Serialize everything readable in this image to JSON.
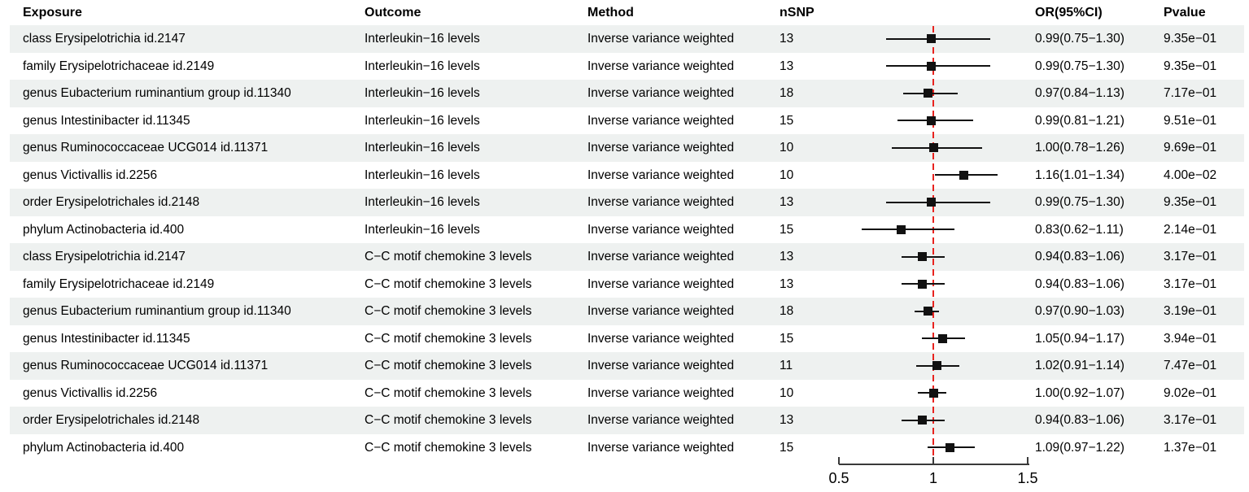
{
  "table": {
    "headers": {
      "exposure": "Exposure",
      "outcome": "Outcome",
      "method": "Method",
      "nsnp": "nSNP",
      "or_ci": "OR(95%CI)",
      "pvalue": "Pvalue"
    }
  },
  "chart_data": {
    "type": "scatter",
    "variant": "forest-plot",
    "xlim": [
      0.5,
      1.5
    ],
    "x_ticks": [
      {
        "value": 0.5,
        "label": "0.5"
      },
      {
        "value": 1,
        "label": "1"
      },
      {
        "value": 1.5,
        "label": "1.5"
      }
    ],
    "reference_line": {
      "x": 1,
      "style": "dashed",
      "color": "#e8231f"
    },
    "rows": [
      {
        "exposure": "class Erysipelotrichia id.2147",
        "outcome": "Interleukin−16 levels",
        "method": "Inverse variance weighted",
        "nsnp": "13",
        "or": 0.99,
        "ci_low": 0.75,
        "ci_high": 1.3,
        "or_ci": "0.99(0.75−1.30)",
        "pvalue": "9.35e−01"
      },
      {
        "exposure": "family Erysipelotrichaceae id.2149",
        "outcome": "Interleukin−16 levels",
        "method": "Inverse variance weighted",
        "nsnp": "13",
        "or": 0.99,
        "ci_low": 0.75,
        "ci_high": 1.3,
        "or_ci": "0.99(0.75−1.30)",
        "pvalue": "9.35e−01"
      },
      {
        "exposure": "genus Eubacterium ruminantium group id.11340",
        "outcome": "Interleukin−16 levels",
        "method": "Inverse variance weighted",
        "nsnp": "18",
        "or": 0.97,
        "ci_low": 0.84,
        "ci_high": 1.13,
        "or_ci": "0.97(0.84−1.13)",
        "pvalue": "7.17e−01"
      },
      {
        "exposure": "genus Intestinibacter id.11345",
        "outcome": "Interleukin−16 levels",
        "method": "Inverse variance weighted",
        "nsnp": "15",
        "or": 0.99,
        "ci_low": 0.81,
        "ci_high": 1.21,
        "or_ci": "0.99(0.81−1.21)",
        "pvalue": "9.51e−01"
      },
      {
        "exposure": "genus Ruminococcaceae UCG014 id.11371",
        "outcome": "Interleukin−16 levels",
        "method": "Inverse variance weighted",
        "nsnp": "10",
        "or": 1.0,
        "ci_low": 0.78,
        "ci_high": 1.26,
        "or_ci": "1.00(0.78−1.26)",
        "pvalue": "9.69e−01"
      },
      {
        "exposure": "genus Victivallis id.2256",
        "outcome": "Interleukin−16 levels",
        "method": "Inverse variance weighted",
        "nsnp": "10",
        "or": 1.16,
        "ci_low": 1.01,
        "ci_high": 1.34,
        "or_ci": "1.16(1.01−1.34)",
        "pvalue": "4.00e−02"
      },
      {
        "exposure": "order Erysipelotrichales id.2148",
        "outcome": "Interleukin−16 levels",
        "method": "Inverse variance weighted",
        "nsnp": "13",
        "or": 0.99,
        "ci_low": 0.75,
        "ci_high": 1.3,
        "or_ci": "0.99(0.75−1.30)",
        "pvalue": "9.35e−01"
      },
      {
        "exposure": "phylum Actinobacteria id.400",
        "outcome": "Interleukin−16 levels",
        "method": "Inverse variance weighted",
        "nsnp": "15",
        "or": 0.83,
        "ci_low": 0.62,
        "ci_high": 1.11,
        "or_ci": "0.83(0.62−1.11)",
        "pvalue": "2.14e−01"
      },
      {
        "exposure": "class Erysipelotrichia id.2147",
        "outcome": "C−C motif chemokine 3 levels",
        "method": "Inverse variance weighted",
        "nsnp": "13",
        "or": 0.94,
        "ci_low": 0.83,
        "ci_high": 1.06,
        "or_ci": "0.94(0.83−1.06)",
        "pvalue": "3.17e−01"
      },
      {
        "exposure": "family Erysipelotrichaceae id.2149",
        "outcome": "C−C motif chemokine 3 levels",
        "method": "Inverse variance weighted",
        "nsnp": "13",
        "or": 0.94,
        "ci_low": 0.83,
        "ci_high": 1.06,
        "or_ci": "0.94(0.83−1.06)",
        "pvalue": "3.17e−01"
      },
      {
        "exposure": "genus Eubacterium ruminantium group id.11340",
        "outcome": "C−C motif chemokine 3 levels",
        "method": "Inverse variance weighted",
        "nsnp": "18",
        "or": 0.97,
        "ci_low": 0.9,
        "ci_high": 1.03,
        "or_ci": "0.97(0.90−1.03)",
        "pvalue": "3.19e−01"
      },
      {
        "exposure": "genus Intestinibacter id.11345",
        "outcome": "C−C motif chemokine 3 levels",
        "method": "Inverse variance weighted",
        "nsnp": "15",
        "or": 1.05,
        "ci_low": 0.94,
        "ci_high": 1.17,
        "or_ci": "1.05(0.94−1.17)",
        "pvalue": "3.94e−01"
      },
      {
        "exposure": "genus Ruminococcaceae UCG014 id.11371",
        "outcome": "C−C motif chemokine 3 levels",
        "method": "Inverse variance weighted",
        "nsnp": "11",
        "or": 1.02,
        "ci_low": 0.91,
        "ci_high": 1.14,
        "or_ci": "1.02(0.91−1.14)",
        "pvalue": "7.47e−01"
      },
      {
        "exposure": "genus Victivallis id.2256",
        "outcome": "C−C motif chemokine 3 levels",
        "method": "Inverse variance weighted",
        "nsnp": "10",
        "or": 1.0,
        "ci_low": 0.92,
        "ci_high": 1.07,
        "or_ci": "1.00(0.92−1.07)",
        "pvalue": "9.02e−01"
      },
      {
        "exposure": "order Erysipelotrichales id.2148",
        "outcome": "C−C motif chemokine 3 levels",
        "method": "Inverse variance weighted",
        "nsnp": "13",
        "or": 0.94,
        "ci_low": 0.83,
        "ci_high": 1.06,
        "or_ci": "0.94(0.83−1.06)",
        "pvalue": "3.17e−01"
      },
      {
        "exposure": "phylum Actinobacteria id.400",
        "outcome": "C−C motif chemokine 3 levels",
        "method": "Inverse variance weighted",
        "nsnp": "15",
        "or": 1.09,
        "ci_low": 0.97,
        "ci_high": 1.22,
        "or_ci": "1.09(0.97−1.22)",
        "pvalue": "1.37e−01"
      }
    ]
  },
  "colors": {
    "row_band": "#eef1f0",
    "marker": "#111111",
    "reference_line": "#e8231f",
    "axis": "#3a3a3a"
  }
}
